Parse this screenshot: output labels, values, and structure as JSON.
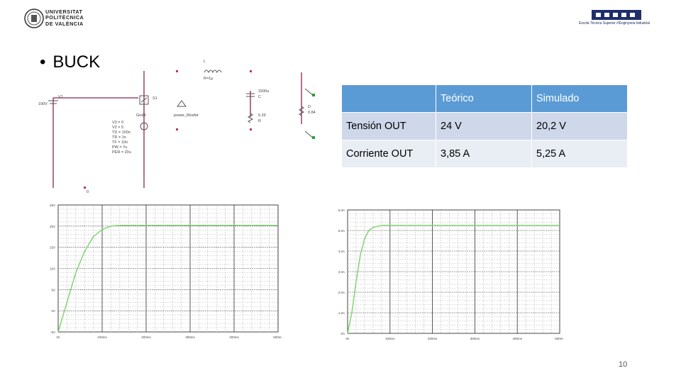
{
  "header": {
    "university_lines": [
      "UNIVERSITAT",
      "POLITÈCNICA",
      "DE VALÈNCIA"
    ],
    "school_name": "Escola Tècnica Superior d'Enginyeria Industrial"
  },
  "slide": {
    "bullet_title": "BUCK",
    "page_number": "10"
  },
  "table": {
    "headers": [
      "",
      "Teórico",
      "Simulado"
    ],
    "rows": [
      {
        "label": "Tensión OUT",
        "teorico": "24 V",
        "simulado": "20,2 V"
      },
      {
        "label": "Corriente OUT",
        "teorico": "3,85 A",
        "simulado": "5,25 A"
      }
    ]
  },
  "colors": {
    "table_header": "#5b9bd5",
    "table_row1": "#cfd8ea",
    "table_row2": "#e9edf4",
    "wire": "#8b2252",
    "trace": "#7ad36b"
  },
  "schematic": {
    "labels": [
      "L",
      "R=1μ",
      "V1",
      "100V",
      "S1",
      "Gnd4",
      "power_Mosfet",
      "1500u",
      "C",
      "5.29",
      "R",
      "D",
      "0.84",
      "V3 = 0",
      "V2 = 5",
      "TD = 100n",
      "TR = 1n",
      "TF = 10n",
      "PW = 7u",
      "PER = 20u",
      "0"
    ]
  },
  "chart_data": [
    {
      "type": "line",
      "title": "",
      "x_tick_labels": [
        "0s",
        "100ms",
        "200ms",
        "300ms",
        "400ms",
        "500ms"
      ],
      "y_tick_labels": [
        "25V",
        "20V",
        "15V",
        "10V",
        "5V",
        "0V",
        "-5V"
      ],
      "xlim": [
        0,
        500
      ],
      "ylim": [
        -5,
        25
      ],
      "grid": true,
      "series": [
        {
          "x": [
            0,
            20,
            40,
            60,
            80,
            100,
            120,
            140,
            160,
            200,
            300,
            400,
            500
          ],
          "y": [
            -5,
            2,
            9,
            14,
            17.5,
            19.2,
            20,
            20.2,
            20.2,
            20.2,
            20.2,
            20.2,
            20.2
          ]
        }
      ]
    },
    {
      "type": "line",
      "title": "",
      "x_tick_labels": [
        "0s",
        "100ms",
        "200ms",
        "300ms",
        "400ms",
        "500ms"
      ],
      "y_tick_labels": [
        "6.0A",
        "5.0A",
        "4.0A",
        "3.0A",
        "2.0A",
        "1.0A",
        "0A"
      ],
      "xlim": [
        0,
        500
      ],
      "ylim": [
        0,
        6
      ],
      "grid": true,
      "series": [
        {
          "x": [
            0,
            10,
            20,
            30,
            40,
            50,
            60,
            80,
            100,
            200,
            300,
            400,
            500
          ],
          "y": [
            0,
            1.0,
            2.5,
            3.8,
            4.6,
            5.0,
            5.15,
            5.25,
            5.25,
            5.25,
            5.25,
            5.25,
            5.25
          ]
        }
      ]
    }
  ]
}
